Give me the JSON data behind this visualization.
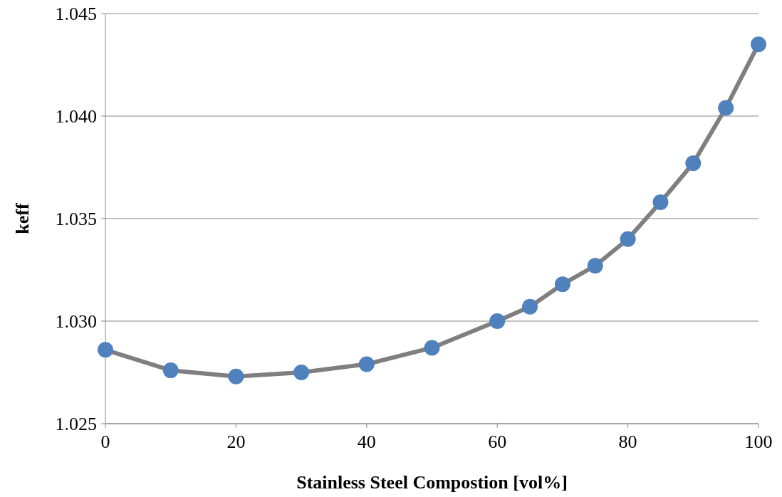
{
  "chart_data": {
    "type": "line",
    "xlabel": "Stainless Steel Compostion [vol%]",
    "ylabel": "keff",
    "x": [
      0,
      10,
      20,
      30,
      40,
      50,
      60,
      65,
      70,
      75,
      80,
      85,
      90,
      95,
      100
    ],
    "series": [
      {
        "color": "#7f7f7f",
        "colors": [
          "#4f81bd",
          "#4f81bd",
          "#4f81bd",
          "#4f81bd",
          "#4f81bd",
          "#4f81bd",
          "#4f81bd",
          "#4f81bd",
          "#4f81bd",
          "#4f81bd",
          "#4f81bd",
          "#4f81bd",
          "#4f81bd",
          "#4f81bd",
          "#4f81bd"
        ],
        "values": [
          1.0286,
          1.0276,
          1.0273,
          1.0275,
          1.0279,
          1.0287,
          1.03,
          1.0307,
          1.0318,
          1.0327,
          1.034,
          1.0358,
          1.0377,
          1.0404,
          1.0435
        ]
      }
    ],
    "xlim": [
      0,
      100
    ],
    "xticks": [
      0,
      20,
      40,
      60,
      80,
      100
    ],
    "ylim": [
      1.025,
      1.045
    ],
    "yticks": [
      {
        "value": 1.025,
        "label": "1.025"
      },
      {
        "value": 1.03,
        "label": "1.030"
      },
      {
        "value": 1.035,
        "label": "1.035"
      },
      {
        "value": 1.04,
        "label": "1.040"
      },
      {
        "value": 1.045,
        "label": "1.045"
      }
    ],
    "grid": "y",
    "marker": "circle",
    "line_style": "solid"
  }
}
